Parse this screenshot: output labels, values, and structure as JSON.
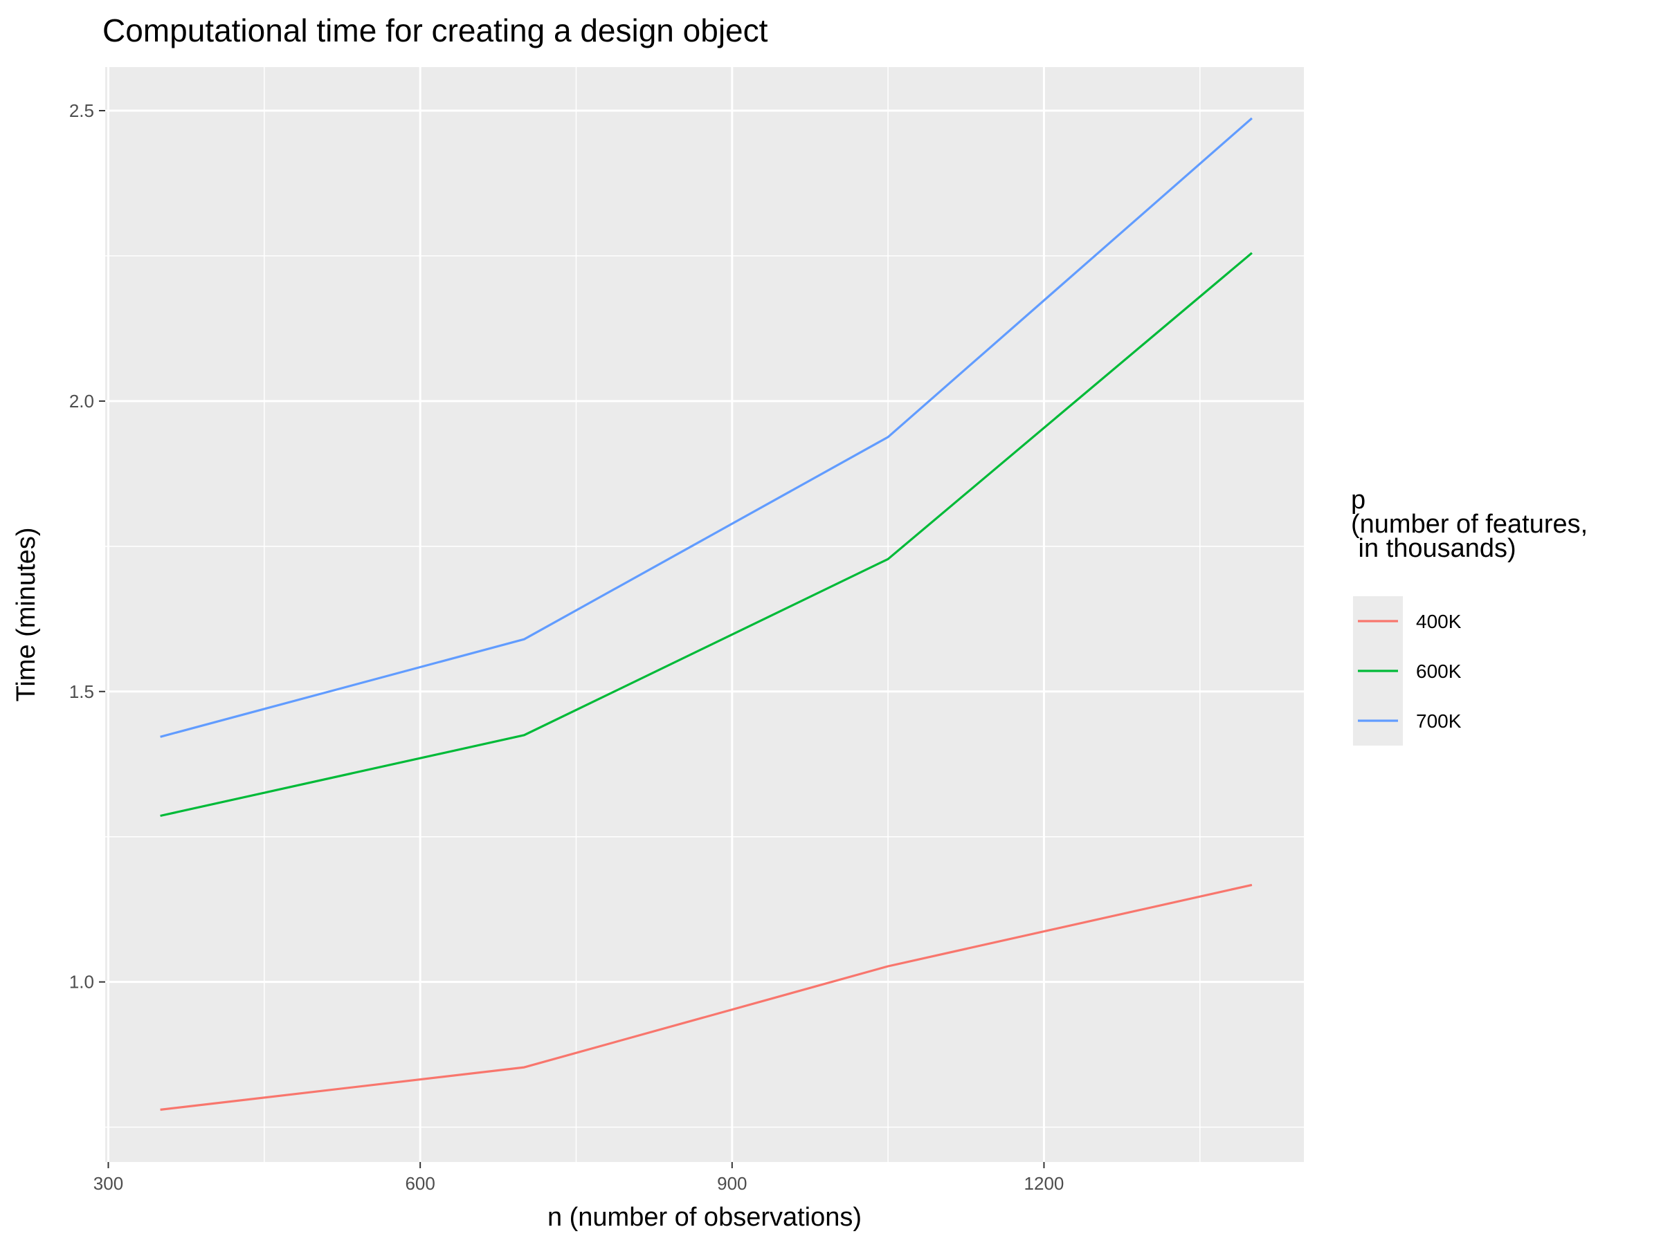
{
  "chart_data": {
    "type": "line",
    "title": "Computational time for creating a design object",
    "xlabel": "n (number of observations)",
    "ylabel": "Time (minutes)",
    "xlim": [
      297,
      1450
    ],
    "ylim": [
      0.69,
      2.575
    ],
    "x_ticks": [
      300,
      600,
      900,
      1200
    ],
    "x_minor": [
      450,
      750,
      1050,
      1350
    ],
    "y_ticks": [
      1.0,
      1.5,
      2.0,
      2.5
    ],
    "y_minor": [
      0.75,
      1.25,
      1.75,
      2.25
    ],
    "grid": true,
    "legend": {
      "title_lines": [
        "p",
        "(number of features,",
        " in thousands)"
      ],
      "position": "right"
    },
    "series": [
      {
        "name": "400K",
        "color": "#F8766D",
        "x": [
          350,
          700,
          1050,
          1400
        ],
        "y": [
          0.78,
          0.853,
          1.027,
          1.167
        ]
      },
      {
        "name": "600K",
        "color": "#00BA38",
        "x": [
          350,
          700,
          1050,
          1400
        ],
        "y": [
          1.286,
          1.425,
          1.728,
          2.255
        ]
      },
      {
        "name": "700K",
        "color": "#619CFF",
        "x": [
          350,
          700,
          1050,
          1400
        ],
        "y": [
          1.422,
          1.59,
          1.938,
          2.487
        ]
      }
    ]
  }
}
